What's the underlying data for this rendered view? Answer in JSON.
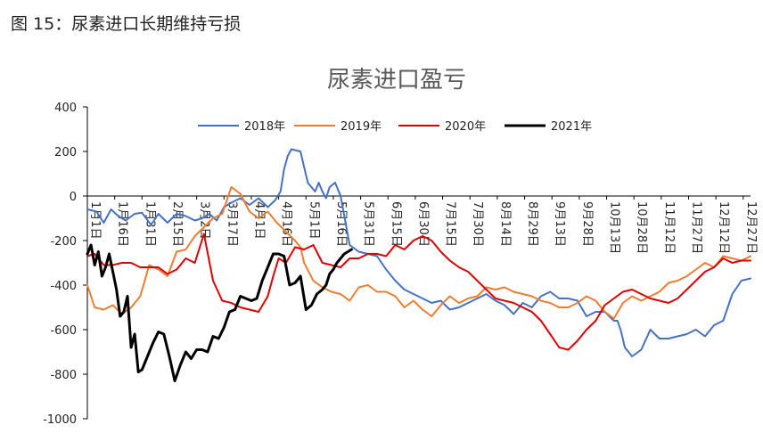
{
  "caption": "图 15：尿素进口长期维持亏损",
  "chart_data": {
    "type": "line",
    "title": "尿素进口盈亏",
    "xlabel": "",
    "ylabel": "",
    "ylim": [
      -1000,
      400
    ],
    "y_ticks": [
      400,
      200,
      0,
      -200,
      -400,
      -600,
      -800,
      -1000
    ],
    "x_ticks": [
      "1月1日",
      "1月16日",
      "1月31日",
      "2月15日",
      "3月2日",
      "3月17日",
      "4月1日",
      "4月16日",
      "5月1日",
      "5月16日",
      "5月31日",
      "6月15日",
      "6月30日",
      "7月15日",
      "7月30日",
      "8月14日",
      "8月29日",
      "9月13日",
      "9月28日",
      "10月13日",
      "10月28日",
      "11月12日",
      "11月27日",
      "12月12日",
      "12月27日"
    ],
    "grid": false,
    "legend_position": "top",
    "series": [
      {
        "name": "2018年",
        "color": "#4472C4",
        "width": 2,
        "x": [
          1,
          6,
          10,
          14,
          18,
          22,
          27,
          31,
          36,
          40,
          45,
          50,
          55,
          60,
          64,
          68,
          72,
          76,
          80,
          85,
          90,
          95,
          100,
          104,
          107,
          109,
          111,
          113,
          118,
          122,
          126,
          128,
          130,
          132,
          134,
          137,
          140,
          145,
          150,
          155,
          160,
          165,
          170,
          175,
          180,
          185,
          190,
          195,
          200,
          205,
          210,
          215,
          220,
          225,
          230,
          235,
          240,
          245,
          250,
          255,
          260,
          265,
          270,
          275,
          280,
          285,
          290,
          292,
          294,
          296,
          298,
          300,
          305,
          310,
          315,
          320,
          325,
          330,
          335,
          340,
          345,
          350,
          355,
          360,
          365
        ],
        "values": [
          -60,
          -70,
          -120,
          -60,
          -90,
          -110,
          -80,
          -75,
          -130,
          -80,
          -120,
          -80,
          -90,
          -110,
          -100,
          -80,
          -110,
          -50,
          -30,
          -10,
          -40,
          -10,
          -50,
          -20,
          20,
          120,
          180,
          210,
          200,
          60,
          20,
          60,
          20,
          -10,
          40,
          60,
          0,
          -220,
          -250,
          -260,
          -270,
          -330,
          -380,
          -420,
          -440,
          -460,
          -480,
          -470,
          -510,
          -500,
          -480,
          -460,
          -440,
          -470,
          -490,
          -530,
          -480,
          -500,
          -450,
          -430,
          -460,
          -460,
          -470,
          -540,
          -520,
          -520,
          -560,
          -560,
          -610,
          -680,
          -700,
          -720,
          -690,
          -600,
          -640,
          -640,
          -630,
          -620,
          -600,
          -630,
          -580,
          -560,
          -440,
          -380,
          -370
        ]
      },
      {
        "name": "2019年",
        "color": "#ED7D31",
        "width": 2,
        "x": [
          1,
          5,
          10,
          15,
          20,
          25,
          30,
          35,
          40,
          45,
          50,
          55,
          60,
          65,
          70,
          75,
          80,
          85,
          90,
          95,
          100,
          105,
          110,
          115,
          118,
          120,
          125,
          130,
          135,
          140,
          145,
          150,
          155,
          160,
          165,
          170,
          175,
          180,
          185,
          190,
          195,
          200,
          205,
          210,
          215,
          220,
          225,
          230,
          235,
          240,
          245,
          250,
          255,
          260,
          265,
          270,
          275,
          280,
          285,
          290,
          295,
          300,
          305,
          310,
          315,
          320,
          325,
          330,
          335,
          340,
          345,
          350,
          355,
          360,
          365
        ],
        "values": [
          -400,
          -500,
          -510,
          -490,
          -530,
          -500,
          -450,
          -310,
          -330,
          -360,
          -250,
          -240,
          -180,
          -140,
          -100,
          -80,
          40,
          10,
          -70,
          -100,
          -70,
          -120,
          -160,
          -200,
          -230,
          -300,
          -380,
          -410,
          -430,
          -440,
          -470,
          -410,
          -400,
          -430,
          -430,
          -450,
          -500,
          -470,
          -510,
          -540,
          -490,
          -450,
          -480,
          -460,
          -450,
          -410,
          -420,
          -410,
          -430,
          -440,
          -450,
          -470,
          -480,
          -500,
          -500,
          -480,
          -450,
          -470,
          -520,
          -550,
          -480,
          -450,
          -470,
          -450,
          -430,
          -390,
          -380,
          -360,
          -330,
          -300,
          -320,
          -270,
          -280,
          -290,
          -270
        ]
      },
      {
        "name": "2020年",
        "color": "#E00000",
        "width": 2,
        "x": [
          1,
          5,
          10,
          15,
          20,
          25,
          30,
          35,
          40,
          45,
          50,
          55,
          60,
          65,
          70,
          75,
          80,
          85,
          90,
          95,
          100,
          103,
          106,
          110,
          115,
          120,
          125,
          130,
          135,
          140,
          145,
          150,
          155,
          160,
          165,
          170,
          175,
          180,
          185,
          190,
          195,
          200,
          205,
          210,
          215,
          220,
          225,
          230,
          235,
          240,
          245,
          250,
          255,
          260,
          265,
          270,
          275,
          280,
          285,
          290,
          295,
          300,
          305,
          310,
          315,
          320,
          325,
          330,
          335,
          340,
          345,
          350,
          355,
          360,
          365
        ],
        "values": [
          -270,
          -260,
          -310,
          -310,
          -300,
          -300,
          -320,
          -320,
          -320,
          -350,
          -330,
          -280,
          -300,
          -170,
          -380,
          -470,
          -480,
          -500,
          -510,
          -520,
          -450,
          -360,
          -280,
          -300,
          -230,
          -240,
          -220,
          -300,
          -310,
          -320,
          -280,
          -280,
          -260,
          -260,
          -270,
          -220,
          -240,
          -200,
          -180,
          -200,
          -250,
          -290,
          -320,
          -340,
          -380,
          -420,
          -460,
          -470,
          -480,
          -500,
          -520,
          -560,
          -620,
          -680,
          -690,
          -650,
          -600,
          -560,
          -490,
          -460,
          -430,
          -420,
          -440,
          -460,
          -470,
          -480,
          -460,
          -420,
          -380,
          -340,
          -320,
          -280,
          -300,
          -290,
          -290
        ]
      },
      {
        "name": "2021年",
        "color": "#000000",
        "width": 3,
        "x": [
          1,
          3,
          5,
          7,
          9,
          11,
          13,
          15,
          17,
          19,
          21,
          23,
          25,
          27,
          29,
          31,
          33,
          35,
          37,
          40,
          43,
          46,
          49,
          52,
          55,
          58,
          61,
          64,
          67,
          70,
          73,
          76,
          79,
          82,
          85,
          88,
          91,
          94,
          97,
          100,
          103,
          106,
          109,
          112,
          115,
          118,
          121,
          124,
          127,
          130,
          132,
          134,
          136,
          138,
          140,
          142,
          144,
          146
        ],
        "values": [
          -260,
          -220,
          -310,
          -250,
          -360,
          -320,
          -260,
          -340,
          -420,
          -540,
          -520,
          -450,
          -680,
          -620,
          -790,
          -780,
          -740,
          -700,
          -660,
          -610,
          -620,
          -720,
          -830,
          -760,
          -700,
          -730,
          -690,
          -690,
          -700,
          -630,
          -640,
          -590,
          -520,
          -510,
          -450,
          -460,
          -470,
          -460,
          -380,
          -320,
          -260,
          -260,
          -270,
          -400,
          -390,
          -360,
          -510,
          -490,
          -440,
          -420,
          -400,
          -350,
          -330,
          -300,
          -280,
          -260,
          -250,
          -240
        ]
      }
    ]
  }
}
